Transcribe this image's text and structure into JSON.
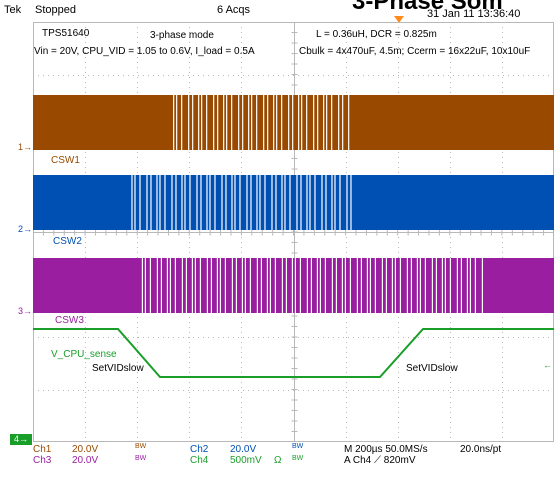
{
  "header": {
    "brand": "Tek",
    "status": "Stopped",
    "acqs": "6 Acqs",
    "title_partial": "3-Phase Som",
    "datetime": "31 Jan 11 13:36:40"
  },
  "annotations": {
    "chip": "TPS51640",
    "mode": "3-phase mode",
    "inductor": "L = 0.36uH, DCR = 0.825m",
    "conditions": "Vin = 20V, CPU_VID = 1.05 to 0.6V, I_load = 0.5A",
    "caps": "Cbulk = 4x470uF, 4.5m;  Ccerm = 16x22uF, 10x10uF",
    "csw1": "CSW1",
    "csw2": "CSW2",
    "csw3": "CSW3",
    "vsense": "V_CPU_sense",
    "setvid_left": "SetVIDslow",
    "setvid_right": "SetVIDslow"
  },
  "channel_markers": {
    "m1": "1",
    "m2": "2",
    "m3": "3",
    "m4": "4"
  },
  "readouts": {
    "ch1": {
      "label": "Ch1",
      "scale": "20.0V",
      "bw": "BW"
    },
    "ch2": {
      "label": "Ch2",
      "scale": "20.0V",
      "bw": "BW"
    },
    "ch3": {
      "label": "Ch3",
      "scale": "20.0V",
      "bw": "BW"
    },
    "ch4": {
      "label": "Ch4",
      "scale": "500mV",
      "ohm": "Ω",
      "bw": "BW"
    },
    "timebase": "M 200µs 50.0MS/s",
    "sample": "20.0ns/pt",
    "trigger": "A  Ch4  ⟋  820mV"
  },
  "colors": {
    "ch1": "#9a4a00",
    "ch2": "#0050b4",
    "ch3": "#9a1fa0",
    "ch4": "#1a9e2a",
    "grid": "#b8b8b8",
    "trigger": "#ff8c1a"
  },
  "waveforms": [
    {
      "name": "CSW1",
      "color_key": "ch1",
      "burst": [
        0.27,
        0.61
      ]
    },
    {
      "name": "CSW2",
      "color_key": "ch2",
      "burst": [
        0.19,
        0.62
      ]
    },
    {
      "name": "CSW3",
      "color_key": "ch3",
      "burst": [
        0.21,
        0.87
      ]
    }
  ]
}
